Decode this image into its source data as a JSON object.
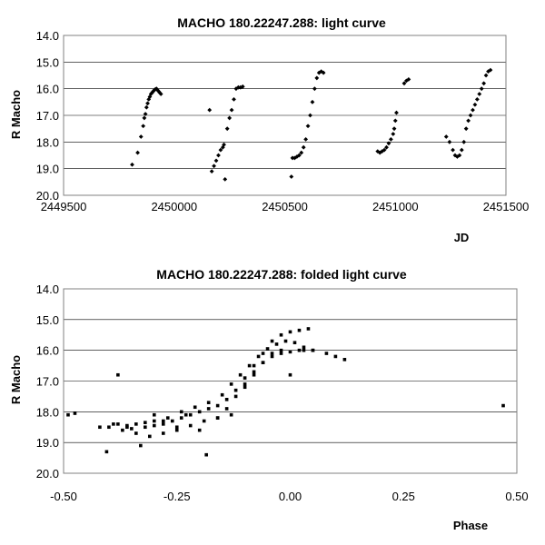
{
  "chart_data": [
    {
      "type": "scatter",
      "title": "MACHO 180.22247.288: light curve",
      "xlabel": "JD",
      "ylabel": "R Macho",
      "xlim": [
        2449500,
        2451500
      ],
      "ylim": [
        14.0,
        20.0
      ],
      "y_inverted": true,
      "grid": "horizontal",
      "xticks": [
        "2449500",
        "2450000",
        "2450500",
        "2451000",
        "2451500"
      ],
      "yticks": [
        "14.0",
        "15.0",
        "16.0",
        "17.0",
        "18.0",
        "19.0",
        "20.0"
      ],
      "series": [
        {
          "marker": "diamond",
          "points": [
            [
              2449810,
              18.85
            ],
            [
              2449835,
              18.4
            ],
            [
              2449850,
              17.8
            ],
            [
              2449860,
              17.4
            ],
            [
              2449865,
              17.1
            ],
            [
              2449870,
              16.95
            ],
            [
              2449875,
              16.7
            ],
            [
              2449880,
              16.55
            ],
            [
              2449885,
              16.4
            ],
            [
              2449890,
              16.3
            ],
            [
              2449895,
              16.2
            ],
            [
              2449900,
              16.15
            ],
            [
              2449905,
              16.1
            ],
            [
              2449910,
              16.05
            ],
            [
              2449915,
              16.02
            ],
            [
              2449920,
              16.0
            ],
            [
              2449925,
              16.05
            ],
            [
              2449930,
              16.1
            ],
            [
              2449935,
              16.15
            ],
            [
              2449940,
              16.2
            ],
            [
              2450160,
              16.8
            ],
            [
              2450170,
              19.1
            ],
            [
              2450180,
              18.9
            ],
            [
              2450190,
              18.7
            ],
            [
              2450200,
              18.5
            ],
            [
              2450210,
              18.3
            ],
            [
              2450220,
              18.2
            ],
            [
              2450225,
              18.1
            ],
            [
              2450230,
              19.4
            ],
            [
              2450240,
              17.5
            ],
            [
              2450250,
              17.1
            ],
            [
              2450260,
              16.8
            ],
            [
              2450270,
              16.4
            ],
            [
              2450280,
              16.0
            ],
            [
              2450290,
              15.95
            ],
            [
              2450300,
              15.95
            ],
            [
              2450310,
              15.92
            ],
            [
              2450530,
              19.3
            ],
            [
              2450535,
              18.6
            ],
            [
              2450545,
              18.6
            ],
            [
              2450555,
              18.55
            ],
            [
              2450565,
              18.5
            ],
            [
              2450575,
              18.4
            ],
            [
              2450585,
              18.2
            ],
            [
              2450595,
              17.9
            ],
            [
              2450605,
              17.4
            ],
            [
              2450615,
              17.0
            ],
            [
              2450625,
              16.5
            ],
            [
              2450635,
              16.0
            ],
            [
              2450645,
              15.6
            ],
            [
              2450655,
              15.4
            ],
            [
              2450665,
              15.35
            ],
            [
              2450675,
              15.4
            ],
            [
              2450920,
              18.35
            ],
            [
              2450930,
              18.4
            ],
            [
              2450940,
              18.35
            ],
            [
              2450950,
              18.3
            ],
            [
              2450960,
              18.2
            ],
            [
              2450970,
              18.05
            ],
            [
              2450980,
              17.9
            ],
            [
              2450990,
              17.7
            ],
            [
              2450995,
              17.5
            ],
            [
              2451000,
              17.2
            ],
            [
              2451005,
              16.9
            ],
            [
              2451040,
              15.8
            ],
            [
              2451050,
              15.7
            ],
            [
              2451060,
              15.65
            ],
            [
              2451230,
              17.8
            ],
            [
              2451245,
              18.0
            ],
            [
              2451260,
              18.3
            ],
            [
              2451270,
              18.5
            ],
            [
              2451280,
              18.55
            ],
            [
              2451290,
              18.5
            ],
            [
              2451300,
              18.3
            ],
            [
              2451310,
              18.0
            ],
            [
              2451320,
              17.5
            ],
            [
              2451330,
              17.2
            ],
            [
              2451340,
              17.0
            ],
            [
              2451350,
              16.8
            ],
            [
              2451360,
              16.6
            ],
            [
              2451370,
              16.4
            ],
            [
              2451380,
              16.2
            ],
            [
              2451390,
              16.0
            ],
            [
              2451400,
              15.8
            ],
            [
              2451410,
              15.5
            ],
            [
              2451420,
              15.35
            ],
            [
              2451430,
              15.3
            ]
          ]
        }
      ]
    },
    {
      "type": "scatter",
      "title": "MACHO 180.22247.288: folded light curve",
      "xlabel": "Phase",
      "ylabel": "R Macho",
      "xlim": [
        -0.5,
        0.5
      ],
      "ylim": [
        14.0,
        20.0
      ],
      "y_inverted": true,
      "grid": "horizontal",
      "xticks": [
        "-0.50",
        "-0.25",
        "0.00",
        "0.25",
        "0.50"
      ],
      "yticks": [
        "14.0",
        "15.0",
        "16.0",
        "17.0",
        "18.0",
        "19.0",
        "20.0"
      ],
      "series": [
        {
          "marker": "square",
          "points": [
            [
              -0.49,
              18.1
            ],
            [
              -0.475,
              18.05
            ],
            [
              -0.38,
              16.8
            ],
            [
              -0.39,
              18.4
            ],
            [
              -0.405,
              19.3
            ],
            [
              -0.36,
              18.5
            ],
            [
              -0.33,
              19.1
            ],
            [
              -0.3,
              18.1
            ],
            [
              -0.28,
              18.3
            ],
            [
              -0.25,
              18.5
            ],
            [
              -0.23,
              18.1
            ],
            [
              -0.2,
              18.6
            ],
            [
              -0.185,
              19.4
            ],
            [
              -0.16,
              18.2
            ],
            [
              -0.13,
              18.1
            ],
            [
              -0.1,
              17.2
            ],
            [
              -0.08,
              16.8
            ],
            [
              -0.06,
              16.4
            ],
            [
              -0.04,
              16.1
            ],
            [
              -0.02,
              16.0
            ],
            [
              0.0,
              16.8
            ],
            [
              0.02,
              16.0
            ],
            [
              0.05,
              16.0
            ],
            [
              0.08,
              16.1
            ],
            [
              0.1,
              16.2
            ],
            [
              0.12,
              16.3
            ],
            [
              0.47,
              17.8
            ],
            [
              -0.42,
              18.5
            ],
            [
              -0.35,
              18.55
            ],
            [
              -0.32,
              18.5
            ],
            [
              -0.3,
              18.45
            ],
            [
              -0.28,
              18.4
            ],
            [
              -0.26,
              18.3
            ],
            [
              -0.24,
              18.2
            ],
            [
              -0.22,
              18.1
            ],
            [
              -0.2,
              18.0
            ],
            [
              -0.18,
              17.9
            ],
            [
              -0.16,
              17.8
            ],
            [
              -0.14,
              17.6
            ],
            [
              -0.12,
              17.3
            ],
            [
              -0.1,
              16.9
            ],
            [
              -0.08,
              16.5
            ],
            [
              -0.06,
              16.1
            ],
            [
              -0.04,
              15.7
            ],
            [
              -0.02,
              15.5
            ],
            [
              0.0,
              15.4
            ],
            [
              0.02,
              15.35
            ],
            [
              0.04,
              15.3
            ],
            [
              -0.4,
              18.5
            ],
            [
              -0.37,
              18.6
            ],
            [
              -0.34,
              18.7
            ],
            [
              -0.31,
              18.8
            ],
            [
              -0.28,
              18.7
            ],
            [
              -0.25,
              18.6
            ],
            [
              -0.22,
              18.45
            ],
            [
              -0.19,
              18.3
            ],
            [
              -0.16,
              18.2
            ],
            [
              -0.14,
              17.9
            ],
            [
              -0.12,
              17.5
            ],
            [
              -0.1,
              17.1
            ],
            [
              -0.08,
              16.7
            ],
            [
              -0.06,
              16.4
            ],
            [
              -0.04,
              16.2
            ],
            [
              -0.02,
              16.1
            ],
            [
              0.0,
              16.05
            ],
            [
              0.03,
              16.0
            ],
            [
              -0.38,
              18.4
            ],
            [
              -0.36,
              18.45
            ],
            [
              -0.34,
              18.4
            ],
            [
              -0.32,
              18.35
            ],
            [
              -0.3,
              18.3
            ],
            [
              -0.27,
              18.2
            ],
            [
              -0.24,
              18.0
            ],
            [
              -0.21,
              17.85
            ],
            [
              -0.18,
              17.7
            ],
            [
              -0.15,
              17.45
            ],
            [
              -0.13,
              17.1
            ],
            [
              -0.11,
              16.8
            ],
            [
              -0.09,
              16.5
            ],
            [
              -0.07,
              16.2
            ],
            [
              -0.05,
              15.95
            ],
            [
              -0.03,
              15.8
            ],
            [
              -0.01,
              15.7
            ],
            [
              0.01,
              15.75
            ],
            [
              0.03,
              15.9
            ],
            [
              0.05,
              16.0
            ]
          ]
        }
      ]
    }
  ]
}
